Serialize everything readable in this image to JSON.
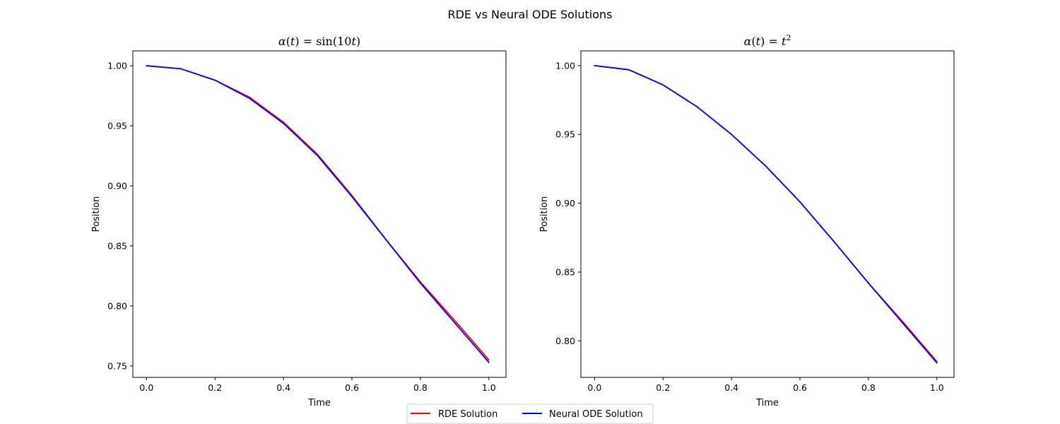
{
  "figure": {
    "suptitle": "RDE vs Neural ODE Solutions"
  },
  "legend": {
    "placement": "bottom-center",
    "entries": [
      {
        "name": "RDE Solution",
        "color": "#ff0000"
      },
      {
        "name": "Neural ODE Solution",
        "color": "#0000ff"
      }
    ]
  },
  "chart_data": [
    {
      "type": "line",
      "title": "α(t) = sin(10t)",
      "title_parts": {
        "lhs_fn": "α",
        "lhs_var": "t",
        "rhs_pre": "sin(10",
        "rhs_var": "t",
        "rhs_post": ")",
        "rhs_sup": ""
      },
      "xlabel": "Time",
      "ylabel": "Position",
      "xlim": [
        -0.04,
        1.05
      ],
      "ylim": [
        0.7405,
        1.0124
      ],
      "xticks": [
        0.0,
        0.2,
        0.4,
        0.6,
        0.8,
        1.0
      ],
      "xtick_labels": [
        "0.0",
        "0.2",
        "0.4",
        "0.6",
        "0.8",
        "1.0"
      ],
      "yticks": [
        0.75,
        0.8,
        0.85,
        0.9,
        0.95,
        1.0
      ],
      "ytick_labels": [
        "0.75",
        "0.80",
        "0.85",
        "0.90",
        "0.95",
        "1.00"
      ],
      "grid": false,
      "x": [
        0.0,
        0.1,
        0.2,
        0.3,
        0.4,
        0.5,
        0.6,
        0.7,
        0.8,
        0.9,
        1.0
      ],
      "series": [
        {
          "name": "RDE Solution",
          "color": "#ff0000",
          "values": [
            1.0,
            0.9975,
            0.988,
            0.974,
            0.953,
            0.926,
            0.892,
            0.855,
            0.82,
            0.788,
            0.755
          ]
        },
        {
          "name": "Neural ODE Solution",
          "color": "#0000ff",
          "values": [
            1.0,
            0.9975,
            0.988,
            0.973,
            0.952,
            0.925,
            0.891,
            0.855,
            0.819,
            0.786,
            0.753
          ]
        }
      ]
    },
    {
      "type": "line",
      "title": "α(t) = t²",
      "title_parts": {
        "lhs_fn": "α",
        "lhs_var": "t",
        "rhs_pre": "",
        "rhs_var": "t",
        "rhs_post": "",
        "rhs_sup": "2"
      },
      "xlabel": "Time",
      "ylabel": "Position",
      "xlim": [
        -0.04,
        1.05
      ],
      "ylim": [
        0.7735,
        1.0107
      ],
      "xticks": [
        0.0,
        0.2,
        0.4,
        0.6,
        0.8,
        1.0
      ],
      "xtick_labels": [
        "0.0",
        "0.2",
        "0.4",
        "0.6",
        "0.8",
        "1.0"
      ],
      "yticks": [
        0.8,
        0.85,
        0.9,
        0.95,
        1.0
      ],
      "ytick_labels": [
        "0.80",
        "0.85",
        "0.90",
        "0.95",
        "1.00"
      ],
      "grid": false,
      "x": [
        0.0,
        0.1,
        0.2,
        0.3,
        0.4,
        0.5,
        0.6,
        0.7,
        0.8,
        0.9,
        1.0
      ],
      "series": [
        {
          "name": "RDE Solution",
          "color": "#ff0000",
          "values": [
            1.0,
            0.997,
            0.986,
            0.97,
            0.95,
            0.927,
            0.901,
            0.872,
            0.842,
            0.814,
            0.785
          ]
        },
        {
          "name": "Neural ODE Solution",
          "color": "#0000ff",
          "values": [
            1.0,
            0.997,
            0.986,
            0.97,
            0.95,
            0.927,
            0.901,
            0.872,
            0.842,
            0.813,
            0.784
          ]
        }
      ]
    }
  ]
}
